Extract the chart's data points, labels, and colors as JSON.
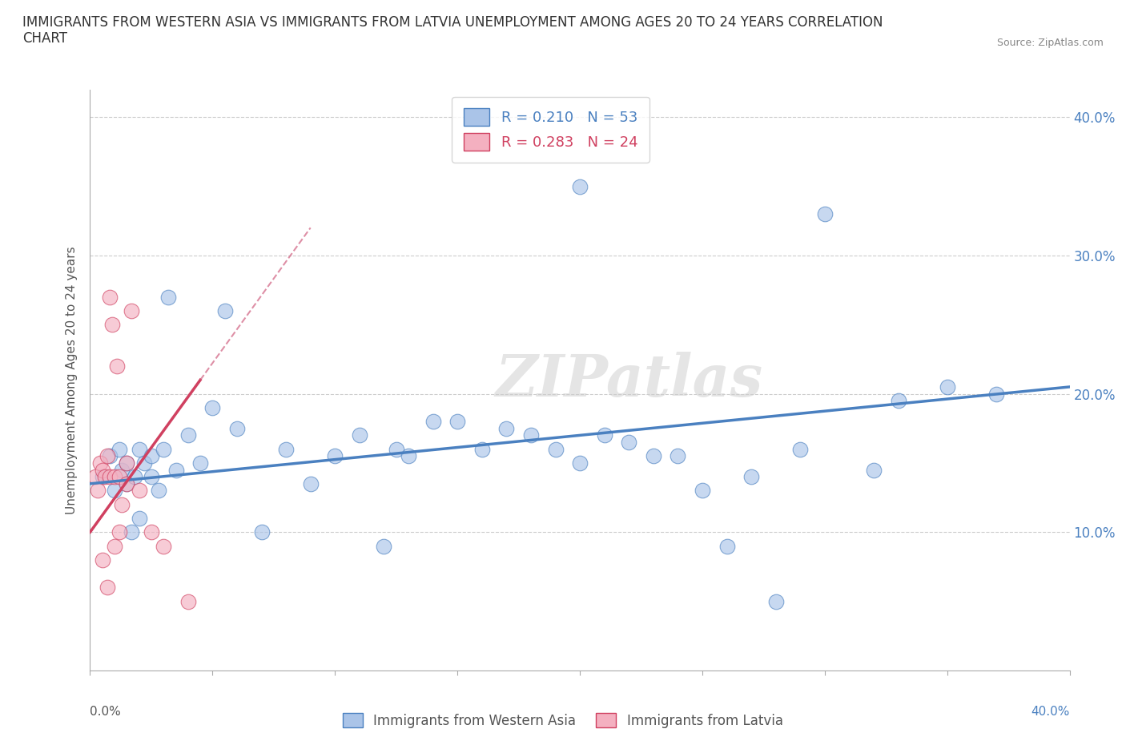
{
  "title": "IMMIGRANTS FROM WESTERN ASIA VS IMMIGRANTS FROM LATVIA UNEMPLOYMENT AMONG AGES 20 TO 24 YEARS CORRELATION\nCHART",
  "source": "Source: ZipAtlas.com",
  "ylabel": "Unemployment Among Ages 20 to 24 years",
  "xlim": [
    0,
    40
  ],
  "ylim": [
    0,
    42
  ],
  "yticks": [
    0,
    10,
    20,
    30,
    40
  ],
  "ytick_labels": [
    "",
    "10.0%",
    "20.0%",
    "30.0%",
    "40.0%"
  ],
  "legend1_label": "Immigrants from Western Asia",
  "legend2_label": "Immigrants from Latvia",
  "R1": 0.21,
  "N1": 53,
  "R2": 0.283,
  "N2": 24,
  "color_blue": "#aac4e8",
  "color_pink": "#f4b0c0",
  "color_blue_line": "#4a80c0",
  "color_pink_line": "#d04060",
  "color_pink_dashed": "#d06080",
  "watermark": "ZIPatlas",
  "blue_x": [
    0.5,
    0.8,
    1.0,
    1.2,
    1.3,
    1.5,
    1.5,
    1.7,
    1.8,
    2.0,
    2.0,
    2.2,
    2.5,
    2.5,
    2.8,
    3.0,
    3.2,
    3.5,
    4.0,
    4.5,
    5.0,
    5.5,
    6.0,
    7.0,
    8.0,
    9.0,
    10.0,
    11.0,
    12.0,
    12.5,
    13.0,
    14.0,
    15.0,
    16.0,
    17.0,
    18.0,
    19.0,
    20.0,
    20.0,
    21.0,
    22.0,
    23.0,
    24.0,
    25.0,
    26.0,
    27.0,
    28.0,
    29.0,
    30.0,
    32.0,
    33.0,
    35.0,
    37.0
  ],
  "blue_y": [
    14.0,
    15.5,
    13.0,
    16.0,
    14.5,
    15.0,
    13.5,
    10.0,
    14.0,
    16.0,
    11.0,
    15.0,
    14.0,
    15.5,
    13.0,
    16.0,
    27.0,
    14.5,
    17.0,
    15.0,
    19.0,
    26.0,
    17.5,
    10.0,
    16.0,
    13.5,
    15.5,
    17.0,
    9.0,
    16.0,
    15.5,
    18.0,
    18.0,
    16.0,
    17.5,
    17.0,
    16.0,
    35.0,
    15.0,
    17.0,
    16.5,
    15.5,
    15.5,
    13.0,
    9.0,
    14.0,
    5.0,
    16.0,
    33.0,
    14.5,
    19.5,
    20.5,
    20.0
  ],
  "pink_x": [
    0.2,
    0.3,
    0.4,
    0.5,
    0.5,
    0.6,
    0.7,
    0.7,
    0.8,
    0.8,
    0.9,
    1.0,
    1.0,
    1.1,
    1.2,
    1.2,
    1.3,
    1.5,
    1.5,
    1.7,
    2.0,
    2.5,
    3.0,
    4.0
  ],
  "pink_y": [
    14.0,
    13.0,
    15.0,
    8.0,
    14.5,
    14.0,
    6.0,
    15.5,
    27.0,
    14.0,
    25.0,
    9.0,
    14.0,
    22.0,
    10.0,
    14.0,
    12.0,
    13.5,
    15.0,
    26.0,
    13.0,
    10.0,
    9.0,
    5.0
  ],
  "blue_trend_x0": 0.0,
  "blue_trend_y0": 13.5,
  "blue_trend_x1": 40.0,
  "blue_trend_y1": 20.5,
  "pink_trend_x0": 0.0,
  "pink_trend_y0": 10.0,
  "pink_trend_x1": 4.5,
  "pink_trend_y1": 21.0,
  "pink_dash_x0": 4.5,
  "pink_dash_y0": 21.0,
  "pink_dash_x1": 9.0,
  "pink_dash_y1": 32.0
}
